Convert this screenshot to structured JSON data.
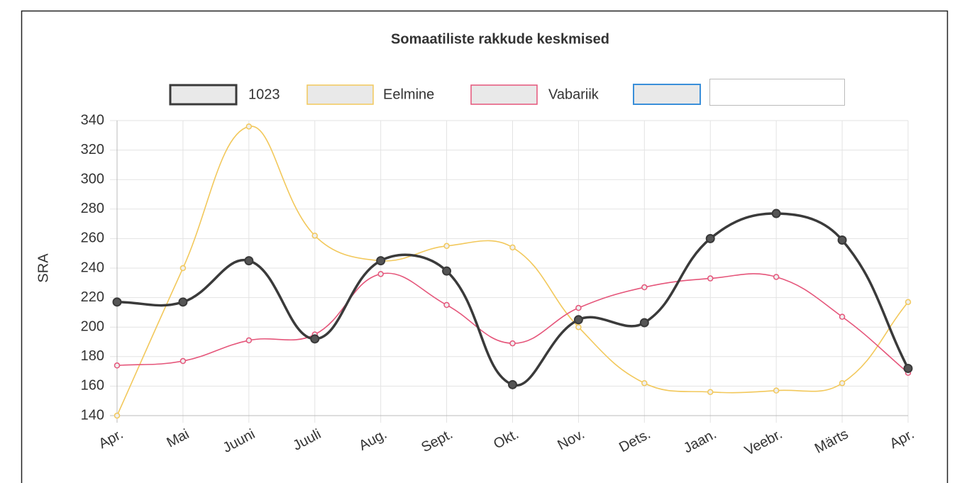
{
  "chart_data": {
    "type": "line",
    "title": "Somaatiliste rakkude keskmised",
    "y_label": "SRA",
    "categories": [
      "Apr.",
      "Mai",
      "Juuni",
      "Juuli",
      "Aug.",
      "Sept.",
      "Okt.",
      "Nov.",
      "Dets.",
      "Jaan.",
      "Veebr.",
      "Märts",
      "Apr."
    ],
    "series": [
      {
        "name": "1023",
        "color": "#3a3a3a",
        "values": [
          217,
          217,
          245,
          192,
          245,
          238,
          161,
          205,
          203,
          260,
          277,
          259,
          172
        ]
      },
      {
        "name": "Eelmine",
        "color": "#f2c85b",
        "values": [
          140,
          240,
          336,
          262,
          245,
          255,
          254,
          200,
          162,
          156,
          157,
          162,
          217
        ]
      },
      {
        "name": "Vabariik",
        "color": "#e5557a",
        "values": [
          174,
          177,
          191,
          195,
          236,
          215,
          189,
          213,
          227,
          233,
          234,
          207,
          169
        ]
      }
    ],
    "ylim": [
      140,
      340
    ],
    "yticks": [
      140,
      160,
      180,
      200,
      220,
      240,
      260,
      280,
      300,
      320,
      340
    ],
    "grid": true
  }
}
